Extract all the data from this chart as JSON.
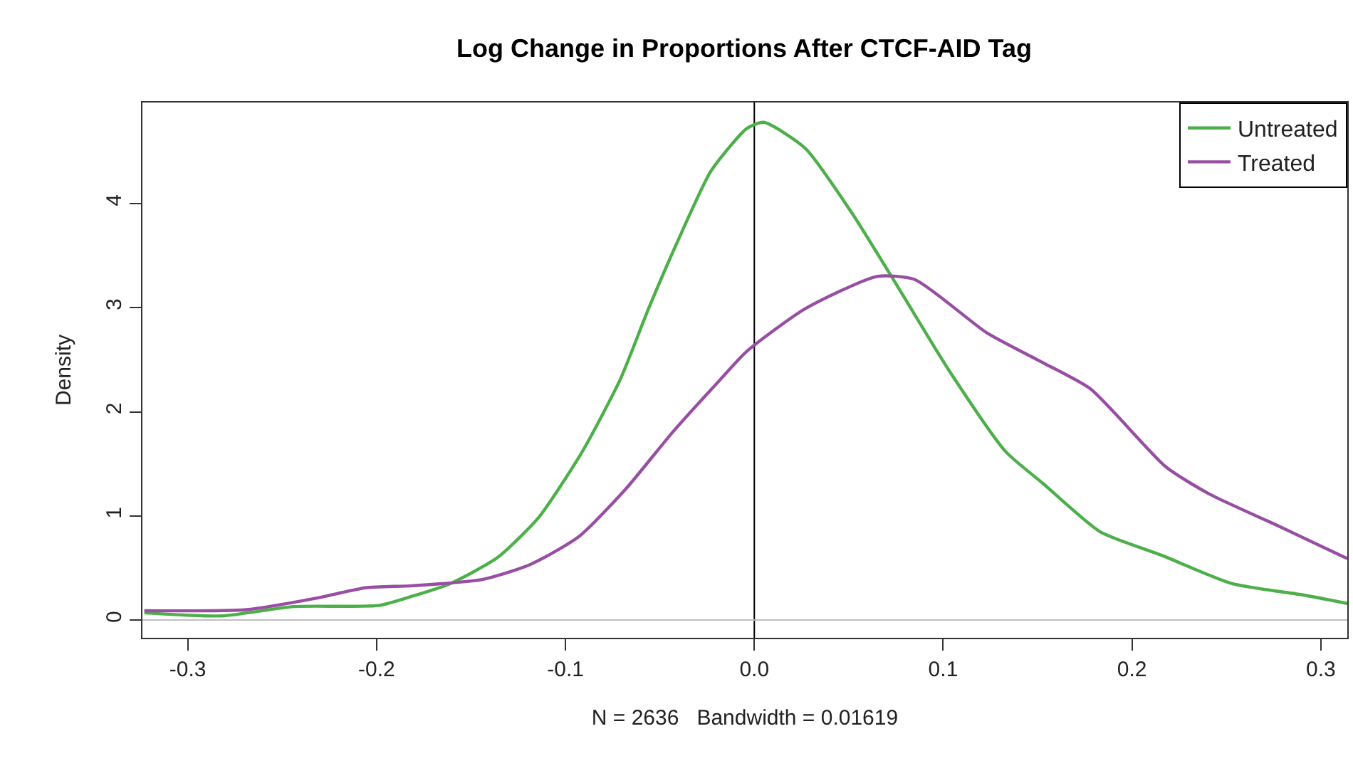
{
  "chart_data": {
    "type": "line",
    "title": "Log Change in Proportions After CTCF-AID Tag",
    "xlabel": "N = 2636   Bandwidth = 0.01619",
    "ylabel": "Density",
    "xlim": [
      -0.324,
      0.314
    ],
    "xticks": [
      {
        "value": -0.3,
        "label": "-0.3"
      },
      {
        "value": -0.2,
        "label": "-0.2"
      },
      {
        "value": -0.1,
        "label": "-0.1"
      },
      {
        "value": 0,
        "label": "0.0"
      },
      {
        "value": 0.1,
        "label": "0.1"
      },
      {
        "value": 0.2,
        "label": "0.2"
      },
      {
        "value": 0.3,
        "label": "0.3"
      }
    ],
    "ylim": [
      -0.17,
      4.97
    ],
    "yticks": [
      0,
      1,
      2,
      3,
      4
    ],
    "legend": "top right",
    "marker": "none",
    "line_style": "solid",
    "ref_lines": [
      {
        "axis": "x",
        "value": 0,
        "color": "#000000"
      },
      {
        "axis": "y",
        "value": 0,
        "color": "#bebebe"
      }
    ],
    "series": [
      {
        "name": "Untreated",
        "color": "#4daf4a",
        "x": [
          -0.323,
          -0.282,
          -0.244,
          -0.199,
          -0.181,
          -0.161,
          -0.136,
          -0.114,
          -0.091,
          -0.071,
          -0.056,
          -0.041,
          -0.023,
          -0.004,
          0.005,
          0.027,
          0.052,
          0.077,
          0.103,
          0.133,
          0.153,
          0.183,
          0.216,
          0.253,
          0.291,
          0.314
        ],
        "values": [
          0.07,
          0.04,
          0.13,
          0.14,
          0.23,
          0.35,
          0.6,
          0.99,
          1.62,
          2.31,
          2.99,
          3.62,
          4.31,
          4.72,
          4.78,
          4.53,
          3.9,
          3.17,
          2.4,
          1.62,
          1.31,
          0.85,
          0.62,
          0.35,
          0.24,
          0.16
        ]
      },
      {
        "name": "Treated",
        "color": "#984ea3",
        "x": [
          -0.323,
          -0.269,
          -0.232,
          -0.206,
          -0.181,
          -0.144,
          -0.119,
          -0.093,
          -0.068,
          -0.043,
          -0.018,
          -0.004,
          0.027,
          0.065,
          0.085,
          0.123,
          0.153,
          0.178,
          0.218,
          0.241,
          0.278,
          0.314
        ],
        "values": [
          0.09,
          0.1,
          0.21,
          0.31,
          0.33,
          0.39,
          0.53,
          0.8,
          1.26,
          1.81,
          2.31,
          2.58,
          2.99,
          3.3,
          3.27,
          2.76,
          2.47,
          2.22,
          1.47,
          1.21,
          0.9,
          0.59
        ]
      }
    ]
  }
}
